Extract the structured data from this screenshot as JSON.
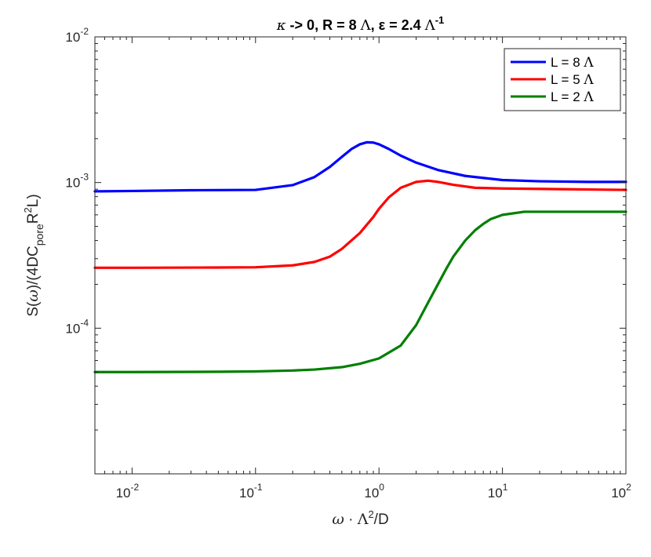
{
  "chart_data": {
    "type": "line",
    "title_parts": [
      "κ",
      " -> 0, R = 8 ",
      "Λ",
      ", ε = 2.4 ",
      "Λ",
      "-1"
    ],
    "xlabel_parts": [
      "ω",
      " · ",
      "Λ",
      "2",
      "/D"
    ],
    "ylabel_parts": [
      "S(",
      "ω",
      ")/(4DC",
      "pore",
      "R",
      "2",
      "L)"
    ],
    "x_scale": "log",
    "y_scale": "log",
    "xlim": [
      0.005,
      100
    ],
    "ylim": [
      1e-05,
      0.01
    ],
    "x_ticks": [
      {
        "value": 0.01,
        "base": "10",
        "exp": "-2"
      },
      {
        "value": 0.1,
        "base": "10",
        "exp": "-1"
      },
      {
        "value": 1,
        "base": "10",
        "exp": "0"
      },
      {
        "value": 10,
        "base": "10",
        "exp": "1"
      },
      {
        "value": 100,
        "base": "10",
        "exp": "2"
      }
    ],
    "y_ticks": [
      {
        "value": 0.0001,
        "base": "10",
        "exp": "-4"
      },
      {
        "value": 0.001,
        "base": "10",
        "exp": "-3"
      },
      {
        "value": 0.01,
        "base": "10",
        "exp": "-2"
      }
    ],
    "grid": false,
    "legend_position": "top-right",
    "series": [
      {
        "name_parts": [
          "L = 8 ",
          "Λ"
        ],
        "color": "#0000ff",
        "points": [
          [
            0.005,
            0.00087
          ],
          [
            0.01,
            0.000875
          ],
          [
            0.03,
            0.000885
          ],
          [
            0.1,
            0.00089
          ],
          [
            0.2,
            0.00096
          ],
          [
            0.3,
            0.00109
          ],
          [
            0.4,
            0.00128
          ],
          [
            0.5,
            0.0015
          ],
          [
            0.6,
            0.0017
          ],
          [
            0.7,
            0.00183
          ],
          [
            0.8,
            0.00189
          ],
          [
            0.9,
            0.00188
          ],
          [
            1.0,
            0.00183
          ],
          [
            1.2,
            0.0017
          ],
          [
            1.5,
            0.00153
          ],
          [
            2.0,
            0.00137
          ],
          [
            3.0,
            0.00122
          ],
          [
            5.0,
            0.00111
          ],
          [
            10,
            0.00104
          ],
          [
            20,
            0.00102
          ],
          [
            50,
            0.00101
          ],
          [
            100,
            0.00101
          ]
        ]
      },
      {
        "name_parts": [
          "L = 5 ",
          "Λ"
        ],
        "color": "#ff0000",
        "points": [
          [
            0.005,
            0.00026
          ],
          [
            0.01,
            0.00026
          ],
          [
            0.05,
            0.000261
          ],
          [
            0.1,
            0.000262
          ],
          [
            0.2,
            0.00027
          ],
          [
            0.3,
            0.000285
          ],
          [
            0.4,
            0.00031
          ],
          [
            0.5,
            0.00035
          ],
          [
            0.7,
            0.00045
          ],
          [
            0.9,
            0.00058
          ],
          [
            1.0,
            0.00066
          ],
          [
            1.2,
            0.00079
          ],
          [
            1.5,
            0.00092
          ],
          [
            2.0,
            0.00101
          ],
          [
            2.5,
            0.00103
          ],
          [
            3.0,
            0.00101
          ],
          [
            4.0,
            0.000965
          ],
          [
            6.0,
            0.00092
          ],
          [
            10,
            0.00091
          ],
          [
            30,
            0.0009
          ],
          [
            100,
            0.00089
          ]
        ]
      },
      {
        "name_parts": [
          "L = 2 ",
          "Λ"
        ],
        "color": "#007f00",
        "points": [
          [
            0.005,
            5e-05
          ],
          [
            0.01,
            5e-05
          ],
          [
            0.05,
            5.02e-05
          ],
          [
            0.1,
            5.05e-05
          ],
          [
            0.2,
            5.12e-05
          ],
          [
            0.3,
            5.2e-05
          ],
          [
            0.5,
            5.4e-05
          ],
          [
            0.7,
            5.7e-05
          ],
          [
            1.0,
            6.2e-05
          ],
          [
            1.5,
            7.6e-05
          ],
          [
            2.0,
            0.000105
          ],
          [
            2.5,
            0.00015
          ],
          [
            3.0,
            0.0002
          ],
          [
            3.5,
            0.000255
          ],
          [
            4.0,
            0.00031
          ],
          [
            5.0,
            0.0004
          ],
          [
            6.0,
            0.00047
          ],
          [
            7.0,
            0.00052
          ],
          [
            8.0,
            0.00056
          ],
          [
            10,
            0.0006
          ],
          [
            15,
            0.00063
          ],
          [
            20,
            0.00063
          ],
          [
            50,
            0.00063
          ],
          [
            100,
            0.00063
          ]
        ]
      }
    ]
  }
}
